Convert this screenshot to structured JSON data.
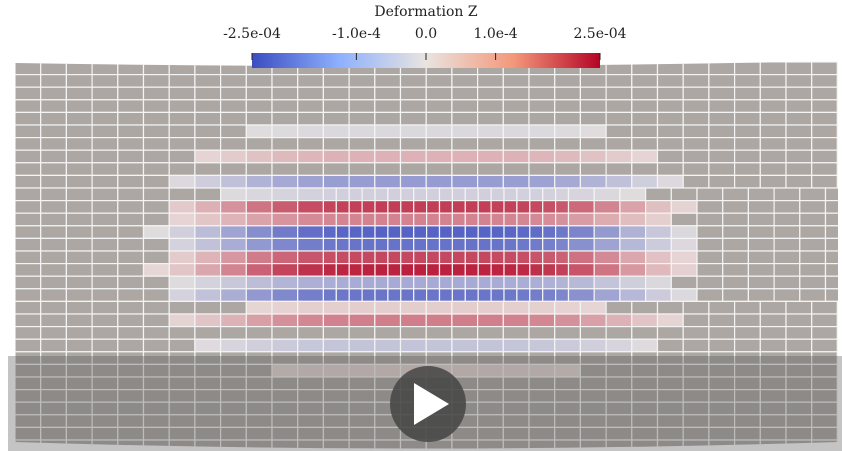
{
  "colorbar": {
    "title": "Deformation Z",
    "range": [
      -0.00025,
      0.00025
    ],
    "ticks": [
      {
        "value": -0.00025,
        "label": "-2.5e-04"
      },
      {
        "value": -0.0001,
        "label": "-1.0e-4"
      },
      {
        "value": 0,
        "label": "0.0"
      },
      {
        "value": 0.0001,
        "label": "1.0e-4"
      },
      {
        "value": 0.00025,
        "label": "2.5e-04"
      }
    ]
  }
}
